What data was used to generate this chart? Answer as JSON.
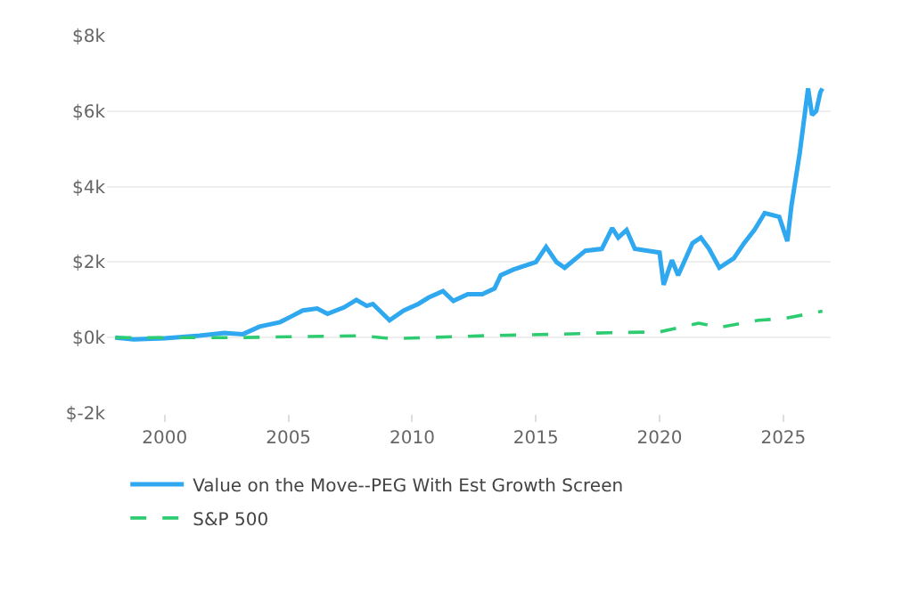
{
  "chart_data": {
    "type": "line",
    "xlim": [
      "1997-09",
      "2026-12"
    ],
    "xticks": [
      "2000",
      "2005",
      "2010",
      "2015",
      "2020",
      "2025"
    ],
    "ylim": [
      -2000,
      8000
    ],
    "yticks": [
      {
        "value": -2000,
        "label": "$-2k"
      },
      {
        "value": 0,
        "label": "$0k"
      },
      {
        "value": 2000,
        "label": "$2k"
      },
      {
        "value": 4000,
        "label": "$4k"
      },
      {
        "value": 6000,
        "label": "$6k"
      },
      {
        "value": 8000,
        "label": "$8k"
      }
    ],
    "grid": "y",
    "legend": "bottom left",
    "marker": "none",
    "series": [
      {
        "name": "Value on the Move--PEG With Est Growth Screen",
        "color": "#2fa8f0",
        "line_style": "solid",
        "x": [
          "1998-01",
          "1998-10",
          "2000-01",
          "2001-06",
          "2002-06",
          "2003-03",
          "2003-11",
          "2004-09",
          "2005-02",
          "2005-08",
          "2006-03",
          "2006-08",
          "2007-04",
          "2007-10",
          "2008-03",
          "2008-06",
          "2009-02",
          "2009-09",
          "2010-04",
          "2010-09",
          "2011-04",
          "2011-09",
          "2012-04",
          "2012-11",
          "2013-05",
          "2013-08",
          "2014-02",
          "2015-01",
          "2015-06",
          "2015-11",
          "2016-03",
          "2017-01",
          "2017-09",
          "2018-02",
          "2018-05",
          "2018-09",
          "2019-01",
          "2020-01",
          "2020-03",
          "2020-07",
          "2020-10",
          "2021-05",
          "2021-09",
          "2022-01",
          "2022-06",
          "2023-01",
          "2023-06",
          "2023-11",
          "2024-04",
          "2024-11",
          "2025-03",
          "2025-05",
          "2025-09",
          "2026-01",
          "2026-03",
          "2026-05",
          "2026-07",
          "2026-08"
        ],
        "values": [
          0,
          -50,
          -20,
          50,
          120,
          90,
          290,
          410,
          550,
          720,
          770,
          630,
          800,
          1000,
          840,
          890,
          460,
          720,
          890,
          1060,
          1230,
          970,
          1150,
          1150,
          1300,
          1650,
          1800,
          2000,
          2400,
          2000,
          1850,
          2300,
          2350,
          2900,
          2650,
          2850,
          2350,
          2250,
          1400,
          2050,
          1650,
          2500,
          2650,
          2350,
          1850,
          2100,
          2500,
          2850,
          3300,
          3200,
          2550,
          3500,
          4900,
          6600,
          5900,
          6000,
          6500,
          6600
        ]
      },
      {
        "name": "S&P 500",
        "color": "#2ecc71",
        "line_style": "dashed",
        "x": [
          "1998-01",
          "2003-01",
          "2008-01",
          "2009-03",
          "2013-01",
          "2016-01",
          "2018-01",
          "2020-01",
          "2021-08",
          "2022-06",
          "2024-01",
          "2025-01",
          "2026-08"
        ],
        "values": [
          0,
          0,
          50,
          -30,
          50,
          90,
          130,
          150,
          380,
          270,
          460,
          500,
          700
        ]
      }
    ]
  }
}
